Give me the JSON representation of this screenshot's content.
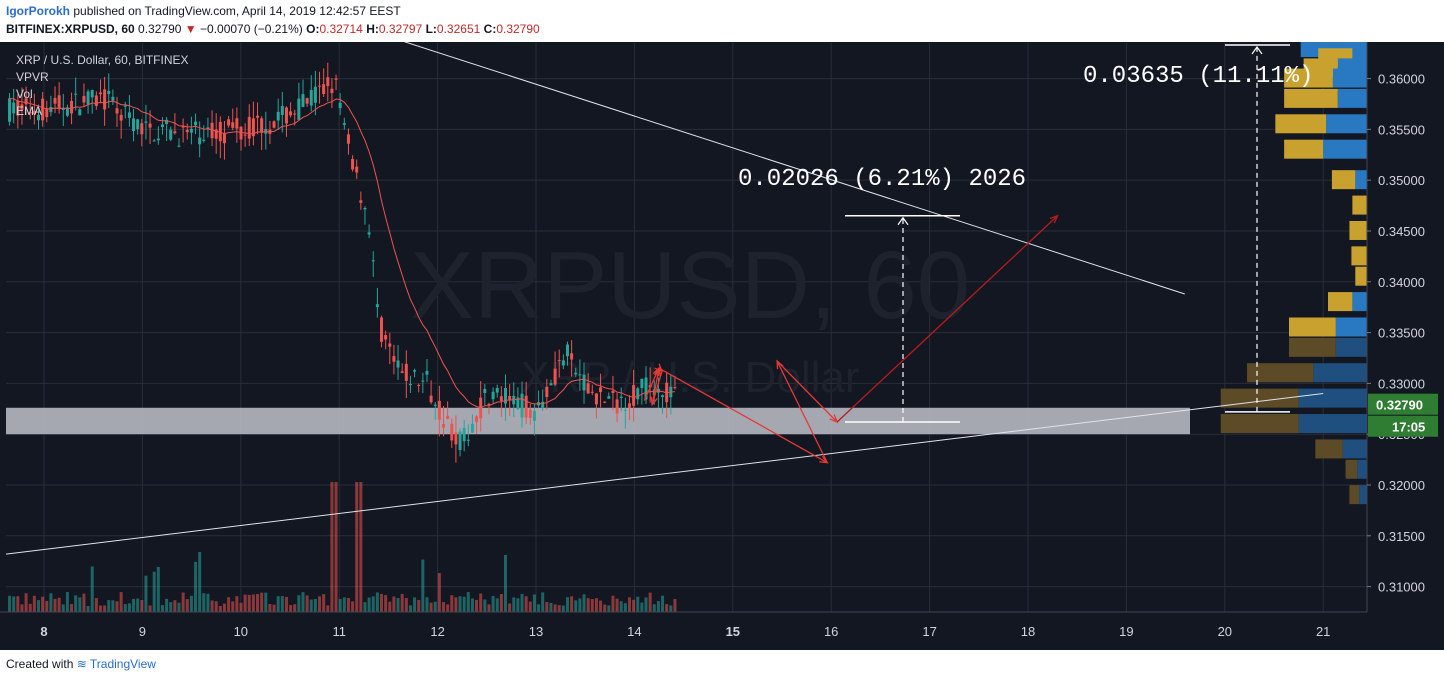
{
  "header": {
    "author": "IgorPorokh",
    "published": "published on TradingView.com, April 14, 2019 12:42:57 EEST",
    "symbol": "BITFINEX:XRPUSD, 60",
    "last": "0.32790",
    "arrow": "▼",
    "change": "−0.00070 (−0.21%)",
    "o_label": "O:",
    "o": "0.32714",
    "h_label": "H:",
    "h": "0.32797",
    "l_label": "L:",
    "l": "0.32651",
    "c_label": "C:",
    "c": "0.32790"
  },
  "legend": {
    "series": "XRP / U.S. Dollar, 60, BITFINEX",
    "indicators": [
      "VPVR",
      "Vol",
      "EMA"
    ]
  },
  "watermark": {
    "symbol": "XRPUSD, 60",
    "name": "XRP / U.S. Dollar"
  },
  "chart_data": {
    "type": "candlestick",
    "y_ticks": [
      "0.36000",
      "0.35500",
      "0.35000",
      "0.34500",
      "0.34000",
      "0.33500",
      "0.33000",
      "0.32500",
      "0.32000",
      "0.31500",
      "0.31000"
    ],
    "y_range": [
      0.3075,
      0.3635
    ],
    "x_ticks": [
      "8",
      "9",
      "10",
      "11",
      "12",
      "13",
      "14",
      "15",
      "16",
      "17",
      "18",
      "19",
      "20",
      "21"
    ],
    "bold_x_ticks": [
      "8",
      "15"
    ],
    "price_label": "0.32790",
    "countdown_label": "17:05",
    "grid": true,
    "annotations": [
      {
        "text": "0.02026 (6.21%) 2026",
        "from_price": 0.3262,
        "to_price": 0.3465
      },
      {
        "text": "0.03635 (11.11%)",
        "from_price": 0.3272,
        "to_price": 0.3635
      }
    ],
    "support_zone": [
      0.325,
      0.3276
    ],
    "trendlines": [
      {
        "name": "resistance",
        "from": [
          "Apr 11",
          0.3657
        ],
        "to": [
          "Apr 20",
          0.3388
        ]
      },
      {
        "name": "support",
        "from": [
          "Apr 7",
          0.3132
        ],
        "to": [
          "Apr 21",
          0.329
        ]
      }
    ],
    "projection_path": [
      [
        "Apr 14",
        0.3283
      ],
      [
        "Apr 14",
        0.3315
      ],
      [
        "Apr 14",
        0.3312
      ],
      [
        "Apr 14",
        0.3279
      ],
      [
        "Apr 14",
        0.3315
      ],
      [
        "Apr 15",
        0.3222
      ],
      [
        "Apr 15",
        0.3322
      ],
      [
        "Apr 16",
        0.3262
      ],
      [
        "Apr 17",
        0.3465
      ]
    ],
    "volume_profile": [
      {
        "price": 0.363,
        "up": 0.0,
        "down": 0.68
      },
      {
        "price": 0.362,
        "up": 0.35,
        "down": 0.15
      },
      {
        "price": 0.361,
        "up": 0.35,
        "down": 0.3
      },
      {
        "price": 0.36,
        "up": 0.5,
        "down": 0.35
      },
      {
        "price": 0.358,
        "up": 0.55,
        "down": 0.3
      },
      {
        "price": 0.3555,
        "up": 0.52,
        "down": 0.42
      },
      {
        "price": 0.353,
        "up": 0.4,
        "down": 0.45
      },
      {
        "price": 0.35,
        "up": 0.24,
        "down": 0.12
      },
      {
        "price": 0.3475,
        "up": 0.15,
        "down": 0.0
      },
      {
        "price": 0.345,
        "up": 0.18,
        "down": 0.0
      },
      {
        "price": 0.3425,
        "up": 0.16,
        "down": 0.0
      },
      {
        "price": 0.3405,
        "up": 0.12,
        "down": 0.0
      },
      {
        "price": 0.338,
        "up": 0.25,
        "down": 0.15
      },
      {
        "price": 0.3355,
        "up": 0.48,
        "down": 0.32
      },
      {
        "price": 0.3335,
        "up": 0.48,
        "down": 0.32
      },
      {
        "price": 0.331,
        "up": 0.68,
        "down": 0.55
      },
      {
        "price": 0.3285,
        "up": 0.8,
        "down": 0.7
      },
      {
        "price": 0.326,
        "up": 0.8,
        "down": 0.7
      },
      {
        "price": 0.3235,
        "up": 0.28,
        "down": 0.25
      },
      {
        "price": 0.3215,
        "up": 0.12,
        "down": 0.1
      },
      {
        "price": 0.319,
        "up": 0.1,
        "down": 0.08
      }
    ]
  },
  "footer": {
    "created": "Created with",
    "brand": "TradingView"
  },
  "colors": {
    "bg": "#131722",
    "up": "#26a69a",
    "down": "#ef5350",
    "grid": "#2a2e39",
    "text": "#d1d4dc"
  }
}
